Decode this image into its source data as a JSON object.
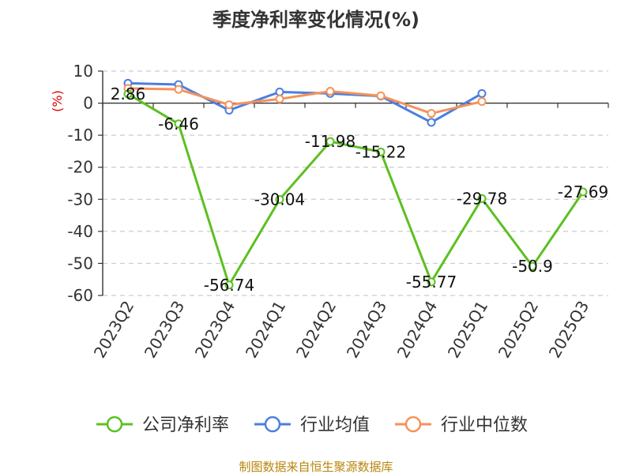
{
  "chart_data": {
    "type": "line",
    "title": "季度净利率变化情况(%)",
    "ylabel": "(%)",
    "categories": [
      "2023Q2",
      "2023Q3",
      "2023Q4",
      "2024Q1",
      "2024Q2",
      "2024Q3",
      "2024Q4",
      "2025Q1",
      "2025Q2",
      "2025Q3"
    ],
    "ylim": [
      -60,
      10
    ],
    "yticks": [
      10,
      0,
      -10,
      -20,
      -30,
      -40,
      -50,
      -60
    ],
    "grid": true,
    "legend_position": "bottom",
    "series": [
      {
        "name": "公司净利率",
        "color": "#5cc020",
        "values": [
          2.86,
          -6.46,
          -56.74,
          -30.04,
          -11.98,
          -15.22,
          -55.77,
          -29.78,
          -50.9,
          -27.69
        ],
        "labels": [
          "2.86",
          "-6.46",
          "-56.74",
          "-30.04",
          "-11.98",
          "-15.22",
          "-55.77",
          "-29.78",
          "-50.9",
          "-27.69"
        ]
      },
      {
        "name": "行业均值",
        "color": "#4a7fe0",
        "values": [
          6.2,
          5.8,
          -2.2,
          3.5,
          3.0,
          2.2,
          -6.0,
          3.0,
          null,
          null
        ]
      },
      {
        "name": "行业中位数",
        "color": "#f5925a",
        "values": [
          4.6,
          4.3,
          -0.5,
          1.3,
          3.7,
          2.3,
          -3.2,
          0.5,
          null,
          null
        ]
      }
    ]
  },
  "source_text": "制图数据来自恒生聚源数据库"
}
